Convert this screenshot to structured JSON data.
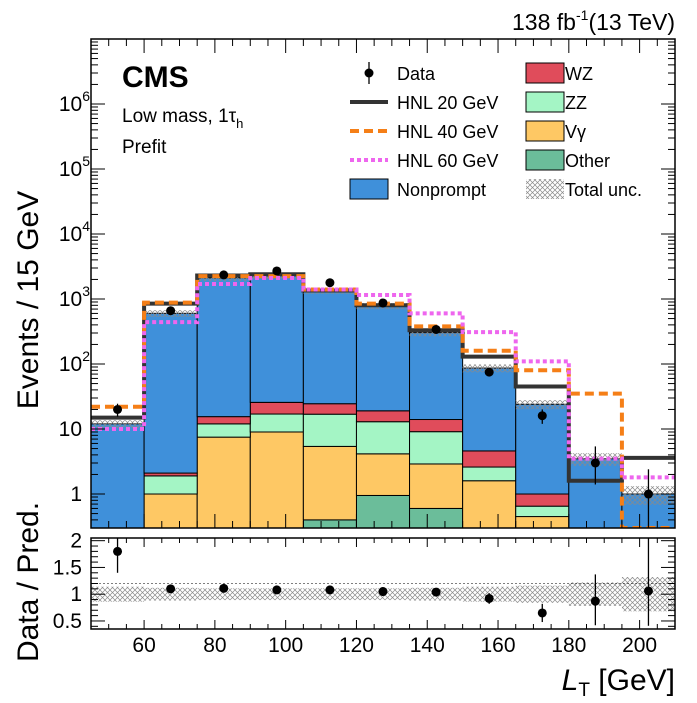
{
  "header": {
    "lumi": "138 fb",
    "lumi_exp": "-1",
    "energy": "(13 TeV)"
  },
  "labels": {
    "cms": "CMS",
    "region": "Low mass, 1τ",
    "region_sub": "h",
    "stage": "Prefit",
    "ylabel_top": "Events / 15 GeV",
    "ylabel_ratio": "Data / Pred.",
    "xlabel": "L",
    "xlabel_sub": "T",
    "xlabel_unit": " [GeV]"
  },
  "colors": {
    "nonprompt": "#3f90da",
    "wz": "#e04c5b",
    "zz": "#a4f5c5",
    "vgamma": "#fec864",
    "other": "#6bbd9a",
    "hnl20": "#333333",
    "hnl40": "#f57f17",
    "hnl60": "#ee66ee",
    "unc": "#bbbbbb"
  },
  "legend": {
    "left": [
      {
        "key": "data",
        "label": "Data"
      },
      {
        "key": "hnl20",
        "label": "HNL 20 GeV"
      },
      {
        "key": "hnl40",
        "label": "HNL 40 GeV"
      },
      {
        "key": "hnl60",
        "label": "HNL 60 GeV"
      },
      {
        "key": "nonprompt",
        "label": "Nonprompt"
      }
    ],
    "right": [
      {
        "key": "wz",
        "label": "WZ"
      },
      {
        "key": "zz",
        "label": "ZZ"
      },
      {
        "key": "vgamma",
        "label": "Vγ"
      },
      {
        "key": "other",
        "label": "Other"
      },
      {
        "key": "unc",
        "label": "Total unc."
      }
    ]
  },
  "chart_data": {
    "type": "bar",
    "stacked": true,
    "xlabel": "L_T [GeV]",
    "ylabel": "Events / 15 GeV",
    "ylog": true,
    "xlim": [
      45,
      210
    ],
    "ylim": [
      0.3,
      10000000
    ],
    "bin_edges": [
      45,
      60,
      75,
      90,
      105,
      120,
      135,
      150,
      165,
      180,
      195,
      210
    ],
    "x_ticks": [
      60,
      80,
      100,
      120,
      140,
      160,
      180,
      200
    ],
    "y_ticks": [
      {
        "v": 1,
        "label": "1"
      },
      {
        "v": 10,
        "label": "10"
      },
      {
        "v": 100,
        "label": "10",
        "exp": "2"
      },
      {
        "v": 1000,
        "label": "10",
        "exp": "3"
      },
      {
        "v": 10000,
        "label": "10",
        "exp": "4"
      },
      {
        "v": 100000,
        "label": "10",
        "exp": "5"
      },
      {
        "v": 1000000,
        "label": "10",
        "exp": "6"
      }
    ],
    "stack": [
      {
        "key": "other",
        "name": "Other",
        "values": [
          0,
          0,
          0,
          0,
          0.4,
          0.95,
          0.6,
          0.3,
          0,
          0,
          0
        ]
      },
      {
        "key": "vgamma",
        "name": "Vγ",
        "values": [
          0,
          1.0,
          7.5,
          9.0,
          5.0,
          3.2,
          2.3,
          1.3,
          0.45,
          0,
          0
        ]
      },
      {
        "key": "zz",
        "name": "ZZ",
        "values": [
          0,
          0.9,
          4.5,
          8.0,
          11.5,
          8.8,
          6.2,
          1.0,
          0.2,
          0,
          0
        ]
      },
      {
        "key": "wz",
        "name": "WZ",
        "values": [
          0,
          0.2,
          3.5,
          8.7,
          7.6,
          6.1,
          4.9,
          2.0,
          0.35,
          0.28,
          0
        ]
      },
      {
        "key": "nonprompt",
        "name": "Nonprompt",
        "values": [
          12,
          600,
          2100,
          2250,
          1320,
          760,
          290,
          82,
          23,
          3.2,
          1.0
        ]
      }
    ],
    "signals": [
      {
        "key": "hnl20",
        "name": "HNL 20 GeV",
        "style": "solid",
        "values": [
          15,
          850,
          2300,
          2400,
          1350,
          800,
          330,
          130,
          45,
          1.6,
          3.6
        ]
      },
      {
        "key": "hnl40",
        "name": "HNL 40 GeV",
        "style": "dashed",
        "values": [
          22,
          880,
          2250,
          2250,
          1400,
          850,
          380,
          160,
          80,
          35,
          0.3
        ]
      },
      {
        "key": "hnl60",
        "name": "HNL 60 GeV",
        "style": "dotted",
        "values": [
          10,
          440,
          1700,
          2100,
          1400,
          1150,
          600,
          310,
          110,
          3.5,
          1.8
        ]
      }
    ],
    "data": {
      "x": [
        52.5,
        67.5,
        82.5,
        97.5,
        112.5,
        127.5,
        142.5,
        157.5,
        172.5,
        187.5,
        202.5
      ],
      "y": [
        20,
        660,
        2350,
        2700,
        1780,
        870,
        340,
        75,
        16,
        3,
        1
      ],
      "err_lo": [
        4.5,
        25,
        48,
        52,
        42,
        30,
        18,
        8.6,
        4,
        1.6,
        0.8
      ],
      "err_hi": [
        4.5,
        25,
        48,
        52,
        42,
        30,
        18,
        8.6,
        4,
        2.4,
        1.4
      ]
    },
    "ratio": {
      "ylabel": "Data / Pred.",
      "ylim": [
        0.35,
        2.05
      ],
      "y_ticks": [
        {
          "v": 0.5,
          "label": "0.5"
        },
        {
          "v": 1,
          "label": "1"
        },
        {
          "v": 1.5,
          "label": "1.5"
        },
        {
          "v": 2,
          "label": "2"
        }
      ],
      "y": [
        1.8,
        1.1,
        1.11,
        1.08,
        1.08,
        1.05,
        1.04,
        0.92,
        0.65,
        0.87,
        1.06
      ],
      "err_lo": [
        0.4,
        0.05,
        0.03,
        0.03,
        0.03,
        0.04,
        0.05,
        0.1,
        0.17,
        0.45,
        0.65
      ],
      "err_hi": [
        0.4,
        0.05,
        0.03,
        0.03,
        0.03,
        0.04,
        0.05,
        0.1,
        0.17,
        0.5,
        1.0
      ],
      "unc": [
        0.14,
        0.12,
        0.11,
        0.11,
        0.11,
        0.11,
        0.12,
        0.14,
        0.16,
        0.22,
        0.32
      ]
    }
  }
}
